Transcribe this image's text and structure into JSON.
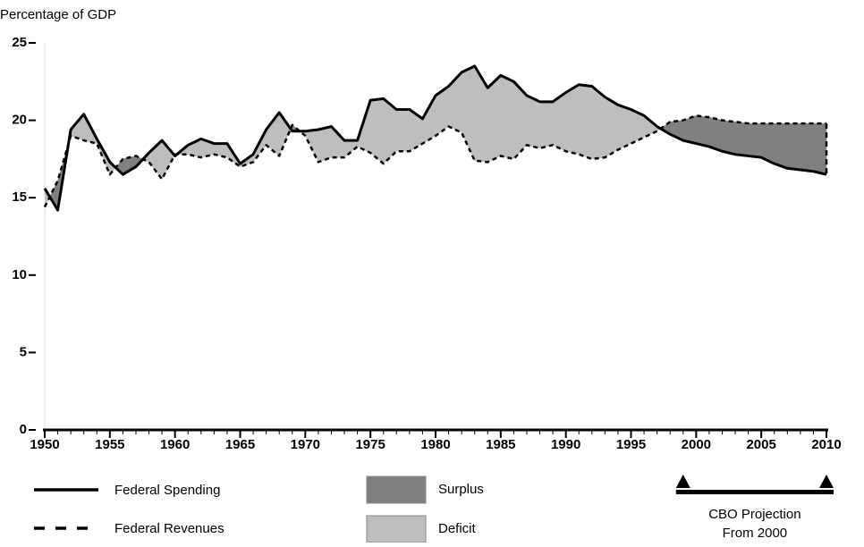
{
  "chart_data": {
    "type": "line",
    "axis_title": "Percentage of GDP",
    "x": [
      1950,
      1951,
      1952,
      1953,
      1954,
      1955,
      1956,
      1957,
      1958,
      1959,
      1960,
      1961,
      1962,
      1963,
      1964,
      1965,
      1966,
      1967,
      1968,
      1969,
      1970,
      1971,
      1972,
      1973,
      1974,
      1975,
      1976,
      1977,
      1978,
      1979,
      1980,
      1981,
      1982,
      1983,
      1984,
      1985,
      1986,
      1987,
      1988,
      1989,
      1990,
      1991,
      1992,
      1993,
      1994,
      1995,
      1996,
      1997,
      1998,
      1999,
      2000,
      2001,
      2002,
      2003,
      2004,
      2005,
      2006,
      2007,
      2008,
      2009,
      2010
    ],
    "series": [
      {
        "name": "Federal Spending",
        "color": "#000000",
        "dash": false,
        "values": [
          15.6,
          14.2,
          19.4,
          20.4,
          18.8,
          17.3,
          16.5,
          17.0,
          17.9,
          18.7,
          17.7,
          18.4,
          18.8,
          18.5,
          18.5,
          17.2,
          17.8,
          19.4,
          20.5,
          19.3,
          19.3,
          19.4,
          19.6,
          18.7,
          18.7,
          21.3,
          21.4,
          20.7,
          20.7,
          20.1,
          21.6,
          22.2,
          23.1,
          23.5,
          22.1,
          22.9,
          22.5,
          21.6,
          21.2,
          21.2,
          21.8,
          22.3,
          22.2,
          21.5,
          21.0,
          20.7,
          20.3,
          19.6,
          19.1,
          18.7,
          18.5,
          18.3,
          18.0,
          17.8,
          17.7,
          17.6,
          17.2,
          16.9,
          16.8,
          16.7,
          16.5
        ]
      },
      {
        "name": "Federal Revenues",
        "color": "#000000",
        "dash": true,
        "values": [
          14.4,
          16.1,
          19.0,
          18.7,
          18.5,
          16.5,
          17.5,
          17.7,
          17.3,
          16.2,
          17.8,
          17.8,
          17.6,
          17.8,
          17.6,
          17.0,
          17.3,
          18.4,
          17.7,
          19.7,
          19.0,
          17.3,
          17.6,
          17.6,
          18.3,
          17.9,
          17.2,
          18.0,
          18.0,
          18.5,
          19.0,
          19.6,
          19.2,
          17.4,
          17.3,
          17.7,
          17.5,
          18.4,
          18.2,
          18.4,
          18.0,
          17.8,
          17.5,
          17.6,
          18.1,
          18.5,
          18.9,
          19.3,
          19.9,
          20.0,
          20.3,
          20.2,
          20.0,
          19.9,
          19.8,
          19.8,
          19.8,
          19.8,
          19.8,
          19.8,
          19.8
        ]
      }
    ],
    "areas": [
      {
        "name": "Surplus",
        "color": "#808080"
      },
      {
        "name": "Deficit",
        "color": "#bebebe"
      }
    ],
    "annotation": [
      "CBO Projection",
      "From 2000"
    ],
    "projection_range": [
      1999,
      2010
    ],
    "xlim": [
      1950,
      2010
    ],
    "xticks": [
      1950,
      1955,
      1960,
      1965,
      1970,
      1975,
      1980,
      1985,
      1990,
      1995,
      2000,
      2005,
      2010
    ],
    "ylim": [
      0,
      25
    ],
    "yticks": [
      0,
      5,
      10,
      15,
      20,
      25
    ],
    "grid": false
  }
}
